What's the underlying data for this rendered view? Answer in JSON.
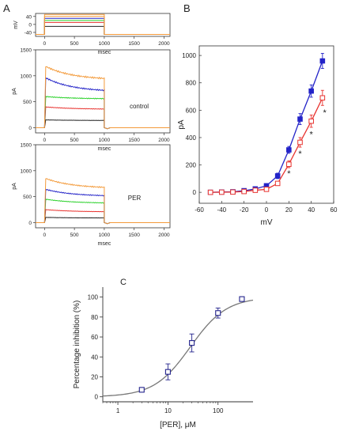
{
  "panel_letters": {
    "a": "A",
    "b": "B",
    "c": "C"
  },
  "colors": {
    "black": "#222222",
    "red": "#e8332f",
    "green": "#2ad12a",
    "blue": "#2323c8",
    "orange": "#f39a3a",
    "navy": "#23238c",
    "fit": "#777777"
  },
  "chart_data": [
    {
      "id": "A_protocol",
      "type": "line",
      "xlabel": "msec",
      "ylabel": "mV",
      "xticks": [
        0,
        500,
        1000,
        1500,
        2000
      ],
      "yticks": [
        40,
        0,
        -40
      ],
      "xlim": [
        -150,
        2100
      ],
      "ylim": [
        -60,
        55
      ],
      "hold_mV": -50,
      "step_on_ms": 0,
      "step_off_ms": 1000,
      "steps_mV": [
        -10,
        10,
        20,
        30,
        40,
        50
      ],
      "step_colors": [
        "#222222",
        "#e8332f",
        "#2ad12a",
        "#2323c8",
        "#f39a3a",
        "#f39a3a"
      ]
    },
    {
      "id": "A_control",
      "type": "line",
      "label": "control",
      "ylabel": "pA",
      "xlabel": "msec",
      "xticks": [
        0,
        500,
        1000,
        1500,
        2000
      ],
      "yticks": [
        0,
        500,
        1000,
        1500
      ],
      "xlim": [
        -150,
        2100
      ],
      "ylim": [
        -100,
        1500
      ],
      "series": [
        {
          "color": "#222222",
          "peak": 150,
          "end": 140
        },
        {
          "color": "#e8332f",
          "peak": 400,
          "end": 360
        },
        {
          "color": "#2ad12a",
          "peak": 600,
          "end": 560
        },
        {
          "color": "#2323c8",
          "peak": 960,
          "end": 720
        },
        {
          "color": "#f39a3a",
          "peak": 1180,
          "end": 950
        }
      ]
    },
    {
      "id": "A_PER",
      "type": "line",
      "label": "PER",
      "ylabel": "pA",
      "xlabel": "msec",
      "xticks": [
        0,
        500,
        1000,
        1500,
        2000
      ],
      "yticks": [
        0,
        500,
        1000,
        1500
      ],
      "xlim": [
        -150,
        2100
      ],
      "ylim": [
        -100,
        1500
      ],
      "series": [
        {
          "color": "#222222",
          "peak": 100,
          "end": 90
        },
        {
          "color": "#e8332f",
          "peak": 250,
          "end": 210
        },
        {
          "color": "#2ad12a",
          "peak": 450,
          "end": 380
        },
        {
          "color": "#2323c8",
          "peak": 640,
          "end": 520
        },
        {
          "color": "#f39a3a",
          "peak": 850,
          "end": 680
        }
      ]
    },
    {
      "id": "B_IV",
      "type": "line",
      "xlabel": "mV",
      "ylabel": "pA",
      "xlim": [
        -60,
        60
      ],
      "ylim": [
        -80,
        1070
      ],
      "xticks": [
        -60,
        -40,
        -20,
        0,
        20,
        40,
        60
      ],
      "yticks": [
        0,
        200,
        400,
        600,
        800,
        1000
      ],
      "series": [
        {
          "name": "control",
          "color": "#2323c8",
          "marker": "filled-square",
          "x": [
            -50,
            -40,
            -30,
            -20,
            -10,
            0,
            10,
            20,
            30,
            40,
            50
          ],
          "y": [
            0,
            2,
            4,
            12,
            25,
            48,
            120,
            310,
            535,
            740,
            960
          ],
          "err": [
            4,
            4,
            6,
            8,
            10,
            12,
            20,
            25,
            40,
            45,
            55
          ]
        },
        {
          "name": "PER",
          "color": "#e8332f",
          "marker": "open-square",
          "x": [
            -50,
            -40,
            -30,
            -20,
            -10,
            0,
            10,
            20,
            30,
            40,
            50
          ],
          "y": [
            0,
            1,
            2,
            6,
            15,
            22,
            65,
            205,
            365,
            520,
            690
          ],
          "err": [
            3,
            3,
            4,
            6,
            8,
            10,
            15,
            25,
            35,
            45,
            55
          ]
        }
      ],
      "annotations": [
        {
          "text": "*",
          "x": 20,
          "y": 140
        },
        {
          "text": "*",
          "x": 30,
          "y": 285
        },
        {
          "text": "*",
          "x": 40,
          "y": 425
        },
        {
          "text": "*",
          "x": 52,
          "y": 585
        }
      ]
    },
    {
      "id": "C_dose",
      "type": "scatter",
      "xlabel": "[PER], μM",
      "ylabel": "Percentage inhibition (%)",
      "xscale": "log",
      "xlim": [
        0.5,
        500
      ],
      "ylim": [
        -5,
        110
      ],
      "xticks": [
        1,
        10,
        100
      ],
      "yticks": [
        0,
        20,
        40,
        60,
        80,
        100
      ],
      "points": {
        "x": [
          3,
          10,
          30,
          100,
          300
        ],
        "y": [
          7,
          25,
          54,
          84,
          98
        ],
        "err": [
          1,
          8,
          9,
          5,
          1
        ]
      },
      "fit": {
        "type": "hill",
        "ic50": 28,
        "hill": 1.2,
        "top": 100
      }
    }
  ]
}
